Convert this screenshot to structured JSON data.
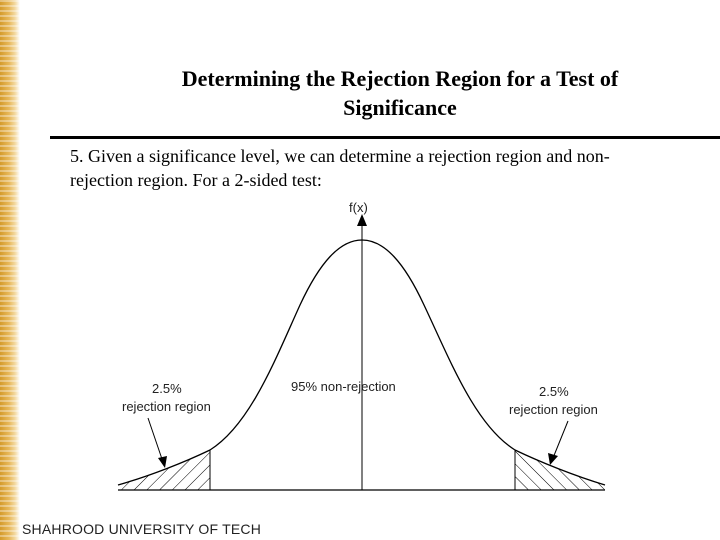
{
  "slide": {
    "title_line1": "Determining the Rejection Region for a Test of",
    "title_line2": "Significance",
    "body_line1": "5. Given a significance level, we can determine a rejection region and non-",
    "body_line2": "rejection region. For a 2-sided test:",
    "footer": "SHAHROOD UNIVERSITY OF TECH"
  },
  "diagram": {
    "axis_label": "f(x)",
    "center_label": "95% non-rejection",
    "left_pct": "2.5%",
    "left_region": "rejection region",
    "right_pct": "2.5%",
    "right_region": "rejection region"
  }
}
